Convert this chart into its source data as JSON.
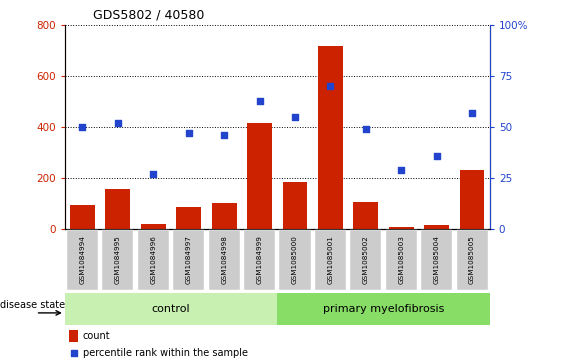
{
  "title": "GDS5802 / 40580",
  "samples": [
    "GSM1084994",
    "GSM1084995",
    "GSM1084996",
    "GSM1084997",
    "GSM1084998",
    "GSM1084999",
    "GSM1085000",
    "GSM1085001",
    "GSM1085002",
    "GSM1085003",
    "GSM1085004",
    "GSM1085005"
  ],
  "counts": [
    95,
    155,
    20,
    85,
    100,
    415,
    185,
    720,
    105,
    8,
    15,
    230
  ],
  "percentiles": [
    50,
    52,
    27,
    47,
    46,
    63,
    55,
    70,
    49,
    29,
    36,
    57
  ],
  "n_control": 6,
  "n_primary": 6,
  "control_label": "control",
  "primary_label": "primary myelofibrosis",
  "disease_state_label": "disease state",
  "legend_count": "count",
  "legend_percentile": "percentile rank within the sample",
  "bar_color": "#cc2200",
  "dot_color": "#2244cc",
  "control_bg": "#c8f0b0",
  "primary_bg": "#88dd66",
  "tick_bg": "#cccccc",
  "left_ylim": [
    0,
    800
  ],
  "right_ylim": [
    0,
    100
  ],
  "left_yticks": [
    0,
    200,
    400,
    600,
    800
  ],
  "right_yticks": [
    0,
    25,
    50,
    75,
    100
  ],
  "right_yticklabels": [
    "0",
    "25",
    "50",
    "75",
    "100%"
  ]
}
